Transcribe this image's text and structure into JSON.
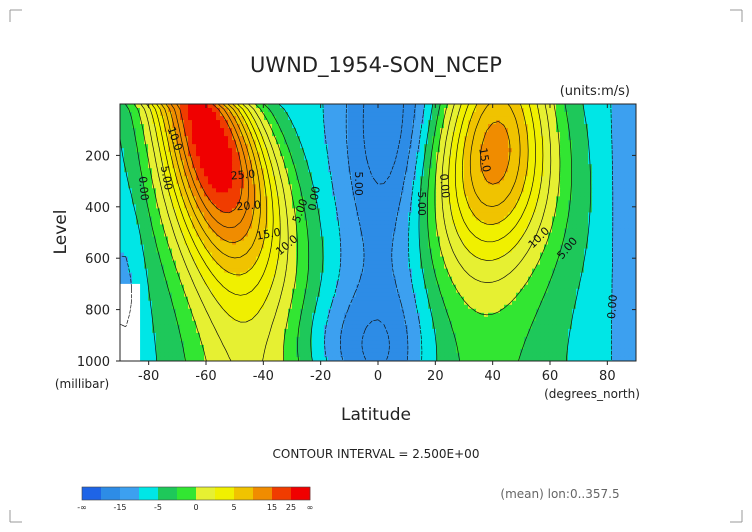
{
  "chart_data": {
    "type": "heatmap",
    "title": "UWND_1954-SON_NCEP",
    "units_label": "(units:m/s)",
    "xlabel": "Latitude",
    "ylabel": "Level",
    "x_units": "(degrees_north)",
    "y_units": "(millibar)",
    "xlim": [
      -90,
      90
    ],
    "ylim": [
      1000,
      0
    ],
    "x_ticks": [
      -80,
      -60,
      -40,
      -20,
      0,
      20,
      40,
      60,
      80
    ],
    "x_tick_labels": [
      "-80",
      "-60",
      "-40",
      "-20",
      "0",
      "20",
      "40",
      "60",
      "80"
    ],
    "y_ticks": [
      200,
      400,
      600,
      800,
      1000
    ],
    "y_tick_labels": [
      "200",
      "400",
      "600",
      "800",
      "1000"
    ],
    "contour_interval": "CONTOUR INTERVAL = 2.500E+00",
    "footnote": "(mean) lon:0..357.5",
    "contour_labels": [
      {
        "text": "10.0",
        "lat": -72,
        "lev": 140,
        "angle": 70
      },
      {
        "text": "5.00",
        "lat": -75,
        "lev": 290,
        "angle": 80
      },
      {
        "text": "0.00",
        "lat": -83,
        "lev": 330,
        "angle": 85
      },
      {
        "text": "25.0",
        "lat": -47,
        "lev": 290,
        "angle": -5
      },
      {
        "text": "20.0",
        "lat": -45,
        "lev": 410,
        "angle": -5
      },
      {
        "text": "15.0",
        "lat": -38,
        "lev": 520,
        "angle": -10
      },
      {
        "text": "10.0",
        "lat": -31,
        "lev": 560,
        "angle": -40
      },
      {
        "text": "5.00",
        "lat": -26,
        "lev": 420,
        "angle": -70
      },
      {
        "text": "0.00",
        "lat": -21,
        "lev": 370,
        "angle": -80
      },
      {
        "text": "5.00",
        "lat": -8,
        "lev": 310,
        "angle": 90
      },
      {
        "text": "-5.00",
        "lat": 14,
        "lev": 380,
        "angle": 90
      },
      {
        "text": "0.00",
        "lat": 22,
        "lev": 320,
        "angle": 85
      },
      {
        "text": "15.0",
        "lat": 36,
        "lev": 220,
        "angle": 80
      },
      {
        "text": "10.0",
        "lat": 57,
        "lev": 530,
        "angle": -45
      },
      {
        "text": "5.00",
        "lat": 67,
        "lev": 570,
        "angle": -50
      },
      {
        "text": "0.00",
        "lat": 83,
        "lev": 790,
        "angle": -85
      }
    ],
    "colorbar": {
      "labels": [
        "-∞",
        "-15",
        "-5",
        "0",
        "5",
        "15",
        "25",
        "∞"
      ],
      "colors": [
        "#1e64e6",
        "#2d8ce6",
        "#3ca0f0",
        "#00e6e6",
        "#1ec85a",
        "#32e632",
        "#e6f032",
        "#f0f000",
        "#f0c300",
        "#f08c00",
        "#f03c00",
        "#f00000"
      ]
    }
  }
}
